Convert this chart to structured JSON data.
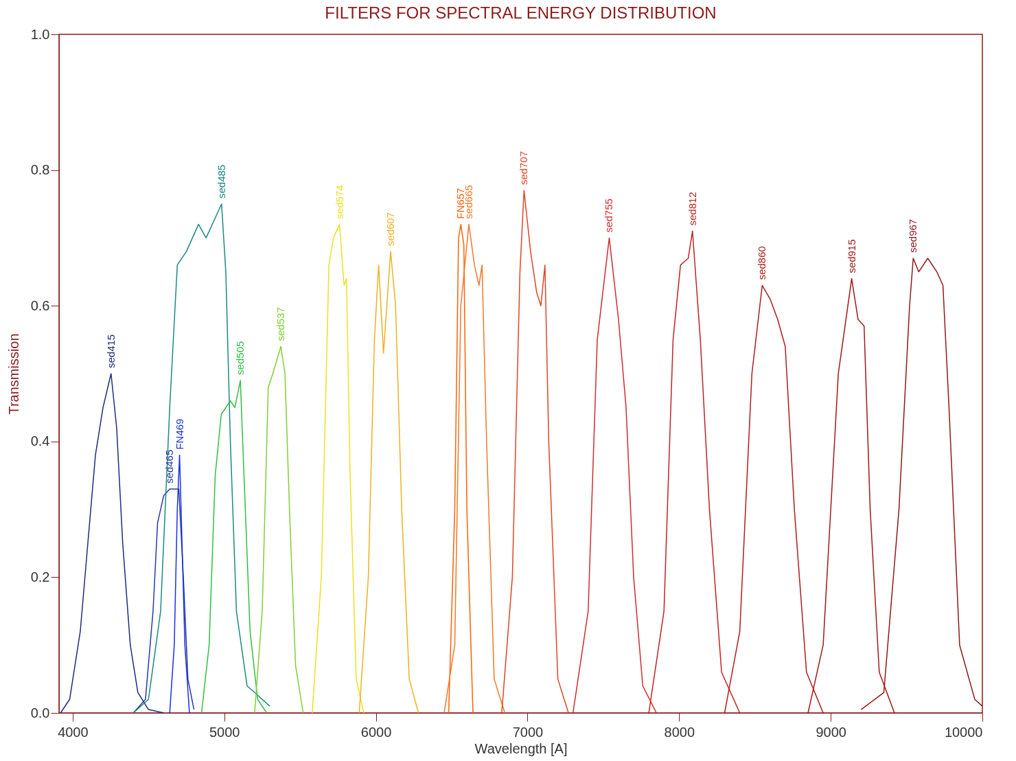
{
  "chart_data": {
    "type": "line",
    "title": "FILTERS FOR SPECTRAL ENERGY DISTRIBUTION",
    "xlabel": "Wavelength [A]",
    "ylabel": "Transmission",
    "xlim": [
      3910,
      10000
    ],
    "ylim": [
      0,
      1
    ],
    "xticks": [
      4000,
      5000,
      6000,
      7000,
      8000,
      9000,
      10000
    ],
    "yticks": [
      {
        "value": 0,
        "label": "0.0"
      },
      {
        "value": 0.2,
        "label": "0.2"
      },
      {
        "value": 0.4,
        "label": "0.4"
      },
      {
        "value": 0.6,
        "label": "0.6"
      },
      {
        "value": 0.8,
        "label": "0.8"
      },
      {
        "value": 1,
        "label": "1.0"
      }
    ],
    "grid": false,
    "legend": false,
    "marker": "none",
    "line_style": "solid",
    "series": [
      {
        "name": "sed415",
        "color": "#1f2a80",
        "x": [
          3920,
          3980,
          4050,
          4100,
          4150,
          4200,
          4253,
          4290,
          4330,
          4380,
          4430,
          4500,
          4600
        ],
        "values": [
          0.0,
          0.02,
          0.12,
          0.25,
          0.38,
          0.45,
          0.5,
          0.42,
          0.25,
          0.1,
          0.03,
          0.005,
          0.0
        ]
      },
      {
        "name": "sed465",
        "color": "#2838a8",
        "x": [
          4400,
          4480,
          4530,
          4560,
          4600,
          4640,
          4670,
          4700,
          4730,
          4760,
          4800
        ],
        "values": [
          0.0,
          0.02,
          0.15,
          0.28,
          0.32,
          0.33,
          0.33,
          0.33,
          0.2,
          0.05,
          0.005
        ]
      },
      {
        "name": "FN469",
        "color": "#1830e0",
        "x": [
          4640,
          4670,
          4690,
          4705,
          4715,
          4740,
          4770
        ],
        "values": [
          0.0,
          0.1,
          0.3,
          0.38,
          0.3,
          0.1,
          0.0
        ]
      },
      {
        "name": "sed485",
        "color": "#1a8a80",
        "x": [
          4400,
          4500,
          4580,
          4640,
          4690,
          4750,
          4830,
          4880,
          4982,
          5010,
          5040,
          5080,
          5150,
          5300
        ],
        "values": [
          0.0,
          0.02,
          0.15,
          0.45,
          0.66,
          0.68,
          0.72,
          0.7,
          0.75,
          0.65,
          0.4,
          0.15,
          0.04,
          0.01
        ]
      },
      {
        "name": "sed505",
        "color": "#30c040",
        "x": [
          4850,
          4900,
          4940,
          4980,
          5040,
          5070,
          5106,
          5130,
          5170,
          5220,
          5280
        ],
        "values": [
          0.0,
          0.1,
          0.35,
          0.44,
          0.46,
          0.45,
          0.49,
          0.35,
          0.12,
          0.02,
          0.0
        ]
      },
      {
        "name": "sed537",
        "color": "#80d030",
        "x": [
          5200,
          5250,
          5290,
          5320,
          5373,
          5400,
          5430,
          5470,
          5520
        ],
        "values": [
          0.0,
          0.15,
          0.48,
          0.5,
          0.54,
          0.5,
          0.3,
          0.07,
          0.0
        ]
      },
      {
        "name": "sed574",
        "color": "#eee020",
        "x": [
          5580,
          5640,
          5690,
          5720,
          5760,
          5790,
          5806,
          5830,
          5870,
          5920
        ],
        "values": [
          0.0,
          0.2,
          0.66,
          0.7,
          0.72,
          0.63,
          0.64,
          0.35,
          0.05,
          0.0
        ]
      },
      {
        "name": "sed607",
        "color": "#f0b020",
        "x": [
          5890,
          5950,
          5990,
          6018,
          6050,
          6097,
          6130,
          6170,
          6220,
          6280
        ],
        "values": [
          0.0,
          0.2,
          0.55,
          0.66,
          0.53,
          0.68,
          0.6,
          0.3,
          0.05,
          0.0
        ]
      },
      {
        "name": "FN657",
        "color": "#ff6000",
        "x": [
          6480,
          6520,
          6545,
          6560,
          6580,
          6600,
          6640
        ],
        "values": [
          0.0,
          0.3,
          0.7,
          0.72,
          0.69,
          0.3,
          0.0
        ]
      },
      {
        "name": "sed665",
        "color": "#f07828",
        "x": [
          6450,
          6520,
          6560,
          6613,
          6650,
          6680,
          6700,
          6730,
          6780,
          6850
        ],
        "values": [
          0.0,
          0.1,
          0.6,
          0.72,
          0.66,
          0.63,
          0.66,
          0.4,
          0.05,
          0.0
        ]
      },
      {
        "name": "sed707",
        "color": "#e04424",
        "x": [
          6830,
          6900,
          6950,
          6977,
          7020,
          7060,
          7088,
          7115,
          7140,
          7200,
          7270
        ],
        "values": [
          0.0,
          0.2,
          0.65,
          0.77,
          0.68,
          0.62,
          0.6,
          0.66,
          0.4,
          0.05,
          0.0
        ]
      },
      {
        "name": "sed755",
        "color": "#d02c2c",
        "x": [
          7300,
          7400,
          7460,
          7539,
          7600,
          7650,
          7700,
          7760,
          7850
        ],
        "values": [
          0.0,
          0.15,
          0.55,
          0.7,
          0.58,
          0.45,
          0.2,
          0.04,
          0.0
        ]
      },
      {
        "name": "sed812",
        "color": "#c02222",
        "x": [
          7800,
          7900,
          7960,
          8009,
          8060,
          8088,
          8140,
          8200,
          8280,
          8400
        ],
        "values": [
          0.0,
          0.15,
          0.55,
          0.66,
          0.67,
          0.71,
          0.55,
          0.3,
          0.06,
          0.0
        ]
      },
      {
        "name": "sed860",
        "color": "#b01c1c",
        "x": [
          8300,
          8400,
          8480,
          8548,
          8600,
          8650,
          8700,
          8760,
          8840,
          8950
        ],
        "values": [
          0.0,
          0.12,
          0.5,
          0.63,
          0.61,
          0.58,
          0.54,
          0.3,
          0.06,
          0.0
        ]
      },
      {
        "name": "sed915",
        "color": "#a01818",
        "x": [
          8850,
          8950,
          9050,
          9138,
          9180,
          9220,
          9260,
          9320,
          9420
        ],
        "values": [
          0.0,
          0.1,
          0.5,
          0.64,
          0.58,
          0.57,
          0.3,
          0.06,
          0.0
        ]
      },
      {
        "name": "sed967",
        "color": "#901818",
        "x": [
          9200,
          9350,
          9450,
          9520,
          9544,
          9580,
          9640,
          9700,
          9740,
          9780,
          9850,
          9950,
          10000
        ],
        "values": [
          0.005,
          0.03,
          0.3,
          0.6,
          0.67,
          0.65,
          0.67,
          0.65,
          0.63,
          0.45,
          0.1,
          0.02,
          0.01
        ]
      }
    ]
  }
}
